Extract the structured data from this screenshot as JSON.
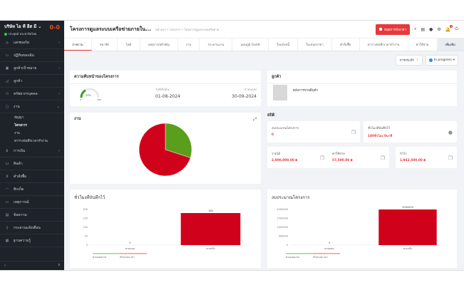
{
  "sidebar": {
    "company": "บริษัท ไอ ที อีส มี",
    "status": "ประยุทธ์ ประชาธิปไตย",
    "logo": "0-0",
    "items": [
      {
        "label": "แดชบอร์ด",
        "icon": "home-icon",
        "chevron": true
      },
      {
        "label": "ปฏิทินของฉัน",
        "icon": "calendar-icon"
      },
      {
        "label": "ลูกค้าเป้าหมาย",
        "icon": "id-card-icon",
        "chevron": true
      },
      {
        "label": "ลูกค้า",
        "icon": "chart-icon"
      },
      {
        "label": "ทรัพยากรบุคคล",
        "icon": "people-icon",
        "chevron": true
      },
      {
        "label": "งาน",
        "icon": "briefcase-icon",
        "expanded": true
      }
    ],
    "subitems": [
      "สัญญา",
      "โครงการ",
      "งาน",
      "ตารางบันทึกเวลาทำงาน"
    ],
    "items2": [
      {
        "label": "การเงิน",
        "icon": "dollar-icon",
        "chevron": true
      },
      {
        "label": "สินค้า",
        "icon": "basket-icon"
      },
      {
        "label": "คำสั่งซื้อ",
        "icon": "cart-icon"
      },
      {
        "label": "ทิกเก็ต",
        "icon": "headset-icon"
      },
      {
        "label": "เหตุการณ์",
        "icon": "event-icon"
      },
      {
        "label": "ข้อความ",
        "icon": "message-icon"
      },
      {
        "label": "กระดานแจ้งเตือน",
        "icon": "clipboard-icon"
      },
      {
        "label": "ฐานความรู้",
        "icon": "book-icon"
      }
    ]
  },
  "header": {
    "title": "โครงการดูแลระบบเครือข่ายภายใน...",
    "breadcrumb": "หน้าแรก • โครงการ • โครงการดูแลระบบเครือข่าย...",
    "record_button": "หยุดการจับเวลา",
    "notification_count": "1"
  },
  "tabs": [
    "ภาพรวม",
    "สมาชิก",
    "ไฟล์",
    "เหตุการณ์สำคัญ",
    "งาน",
    "กระดานงาน",
    "แผนภูมิ Gantt",
    "ใบแจ้งหนี้",
    "ใบเสนอราคา",
    "คำสั่งซื้อ",
    "ตารางบันทึกเวลาทำงาน",
    "ค่าใช้จ่าย",
    "เพิ่มเติม"
  ],
  "toolbar": {
    "actions": "การกระทำ",
    "status": "In progress"
  },
  "progress": {
    "title": "ความคืบหน้าของโครงการ",
    "percent": 33,
    "percent_label": "33%",
    "min": "0",
    "max": "100",
    "start_label": "วันที่เริ่มต้น",
    "start": "01-08-2024",
    "deadline_label": "กำหนดส่ง",
    "deadline": "30-09-2024"
  },
  "client": {
    "title": "ลูกค้า",
    "name": "คลังการขายสินค้า"
  },
  "tasks": {
    "title": "งาน",
    "pie": [
      {
        "name": "done",
        "value": 30,
        "color": "#5a9e1b"
      },
      {
        "name": "open",
        "value": 70,
        "color": "#d0021b"
      }
    ]
  },
  "stats": {
    "title": "สถิติ",
    "items": [
      {
        "label": "งบประมาณโครงการ",
        "value": "0"
      },
      {
        "label": "ชั่วโมงที่บันทึกไว้",
        "value": "180ชั่วโมง 0นาที"
      },
      {
        "label": "รายได้",
        "value": "2,000,000.00 ฿"
      },
      {
        "label": "ค่าใช้จ่าย",
        "value": "57,500.00 ฿"
      },
      {
        "label": "กำไร",
        "value": "1,942,500.00 ฿"
      }
    ]
  },
  "chart_data": [
    {
      "type": "bar",
      "title": "ชั่วโมงที่บันทึกไว้",
      "categories": [
        "ตามแผน",
        "ตามจริง"
      ],
      "values": [
        0,
        180
      ],
      "ylim": [
        0,
        200
      ],
      "yticks": [
        0,
        50,
        100,
        150,
        200
      ],
      "legend": [
        "ตามแผนงาน",
        "เกินระยะเวลา"
      ],
      "legend_colors": [
        "#9ed68a",
        "#f19a94"
      ]
    },
    {
      "type": "bar",
      "title": "งบประมาณโครงการ",
      "categories": [
        "ตามแผน",
        "ตามจริง"
      ],
      "values": [
        0,
        2000000
      ],
      "ylim": [
        0,
        2000000
      ],
      "yticks": [
        0,
        500000,
        1000000,
        1500000,
        2000000
      ],
      "legend": [
        "ตามแผนงาน",
        "เกินระยะเวลา"
      ],
      "legend_colors": [
        "#9ed68a",
        "#f19a94"
      ]
    }
  ]
}
